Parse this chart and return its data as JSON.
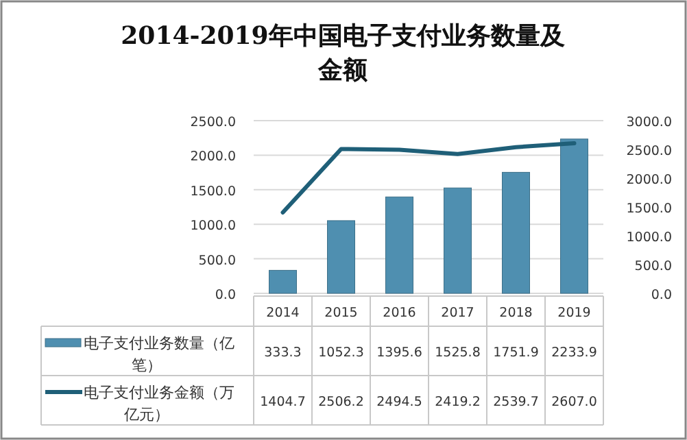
{
  "chart_data": {
    "type": "bar",
    "title": "2014-2019年中国电子支付业务数量及金额",
    "categories": [
      "2014",
      "2015",
      "2016",
      "2017",
      "2018",
      "2019"
    ],
    "series": [
      {
        "name": "电子支付业务数量（亿笔）",
        "color": "#4f8fb0",
        "values": [
          333.3,
          1052.3,
          1395.6,
          1525.8,
          1751.9,
          2233.9
        ],
        "value_labels": [
          "333.3",
          "1052.3",
          "1395.6",
          "1525.8",
          "1751.9",
          "2233.9"
        ]
      },
      {
        "name": "电子支付业务金额（万亿元）",
        "type": "line",
        "axis": "y2",
        "color": "#1f5f78",
        "values": [
          1404.7,
          2506.2,
          2494.5,
          2419.2,
          2539.7,
          2607.0
        ],
        "value_labels": [
          "1404.7",
          "2506.2",
          "2494.5",
          "2419.2",
          "2539.7",
          "2607.0"
        ]
      }
    ],
    "ylim": [
      0,
      2500
    ],
    "yticks": [
      {
        "value": 0,
        "label": "0.0"
      },
      {
        "value": 500,
        "label": "500.0"
      },
      {
        "value": 1000,
        "label": "1000.0"
      },
      {
        "value": 1500,
        "label": "1500.0"
      },
      {
        "value": 2000,
        "label": "2000.0"
      },
      {
        "value": 2500,
        "label": "2500.0"
      }
    ],
    "y2lim": [
      0,
      3000
    ],
    "y2ticks": [
      {
        "value": 0,
        "label": "0.0"
      },
      {
        "value": 500,
        "label": "500.0"
      },
      {
        "value": 1000,
        "label": "1000.0"
      },
      {
        "value": 1500,
        "label": "1500.0"
      },
      {
        "value": 2000,
        "label": "2000.0"
      },
      {
        "value": 2500,
        "label": "2500.0"
      },
      {
        "value": 3000,
        "label": "3000.0"
      }
    ],
    "grid": "y",
    "legend": "bottom"
  }
}
